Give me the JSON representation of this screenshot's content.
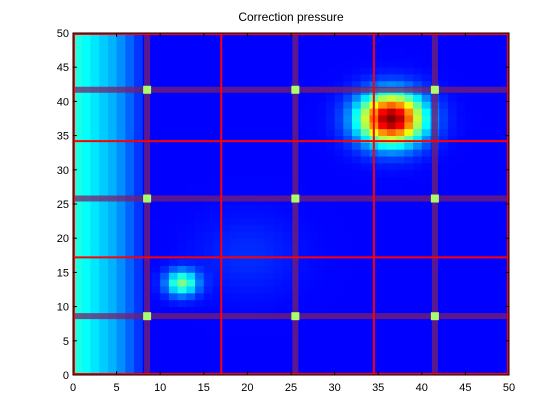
{
  "chart_data": {
    "type": "heatmap",
    "title": "Correction pressure",
    "xlabel": "",
    "ylabel": "",
    "xlim": [
      0,
      50
    ],
    "ylim": [
      0,
      50
    ],
    "x_ticks": [
      0,
      5,
      10,
      15,
      20,
      25,
      30,
      35,
      40,
      45,
      50
    ],
    "y_ticks": [
      0,
      5,
      10,
      15,
      20,
      25,
      30,
      35,
      40,
      45,
      50
    ],
    "grid_cells": 50,
    "colormap": "jet",
    "value_range": [
      0,
      1
    ],
    "background_level": 0.0,
    "left_edge_gradient": [
      {
        "x": 0.5,
        "value": 0.32
      },
      {
        "x": 1.5,
        "value": 0.29
      },
      {
        "x": 2.5,
        "value": 0.26
      },
      {
        "x": 3.5,
        "value": 0.23
      },
      {
        "x": 4.5,
        "value": 0.2
      },
      {
        "x": 5.5,
        "value": 0.16
      },
      {
        "x": 6.5,
        "value": 0.11
      },
      {
        "x": 7.5,
        "value": 0.06
      }
    ],
    "hotspots": [
      {
        "x": 36.5,
        "y": 37.5,
        "peak": 1.0,
        "spread": 2.6
      },
      {
        "x": 12.5,
        "y": 13.5,
        "peak": 0.42,
        "spread": 1.3
      },
      {
        "x": 20.0,
        "y": 17.5,
        "peak": 0.05,
        "spread": 4.0
      }
    ],
    "major_boundaries": {
      "x": [
        17,
        34.5
      ],
      "y": [
        17.2,
        34.2
      ],
      "color": "#ff0000"
    },
    "minor_boundaries": {
      "x": [
        8.5,
        25.5,
        41.5
      ],
      "y": [
        8.6,
        25.8,
        41.7
      ],
      "color": "#7a1f6b"
    },
    "markers": {
      "color": "#a8ff6e",
      "points": [
        {
          "x": 8.5,
          "y": 41.7
        },
        {
          "x": 25.5,
          "y": 41.7
        },
        {
          "x": 41.5,
          "y": 41.7
        },
        {
          "x": 8.5,
          "y": 25.8
        },
        {
          "x": 25.5,
          "y": 25.8
        },
        {
          "x": 41.5,
          "y": 25.8
        },
        {
          "x": 8.5,
          "y": 8.6
        },
        {
          "x": 25.5,
          "y": 8.6
        },
        {
          "x": 41.5,
          "y": 8.6
        }
      ]
    }
  }
}
